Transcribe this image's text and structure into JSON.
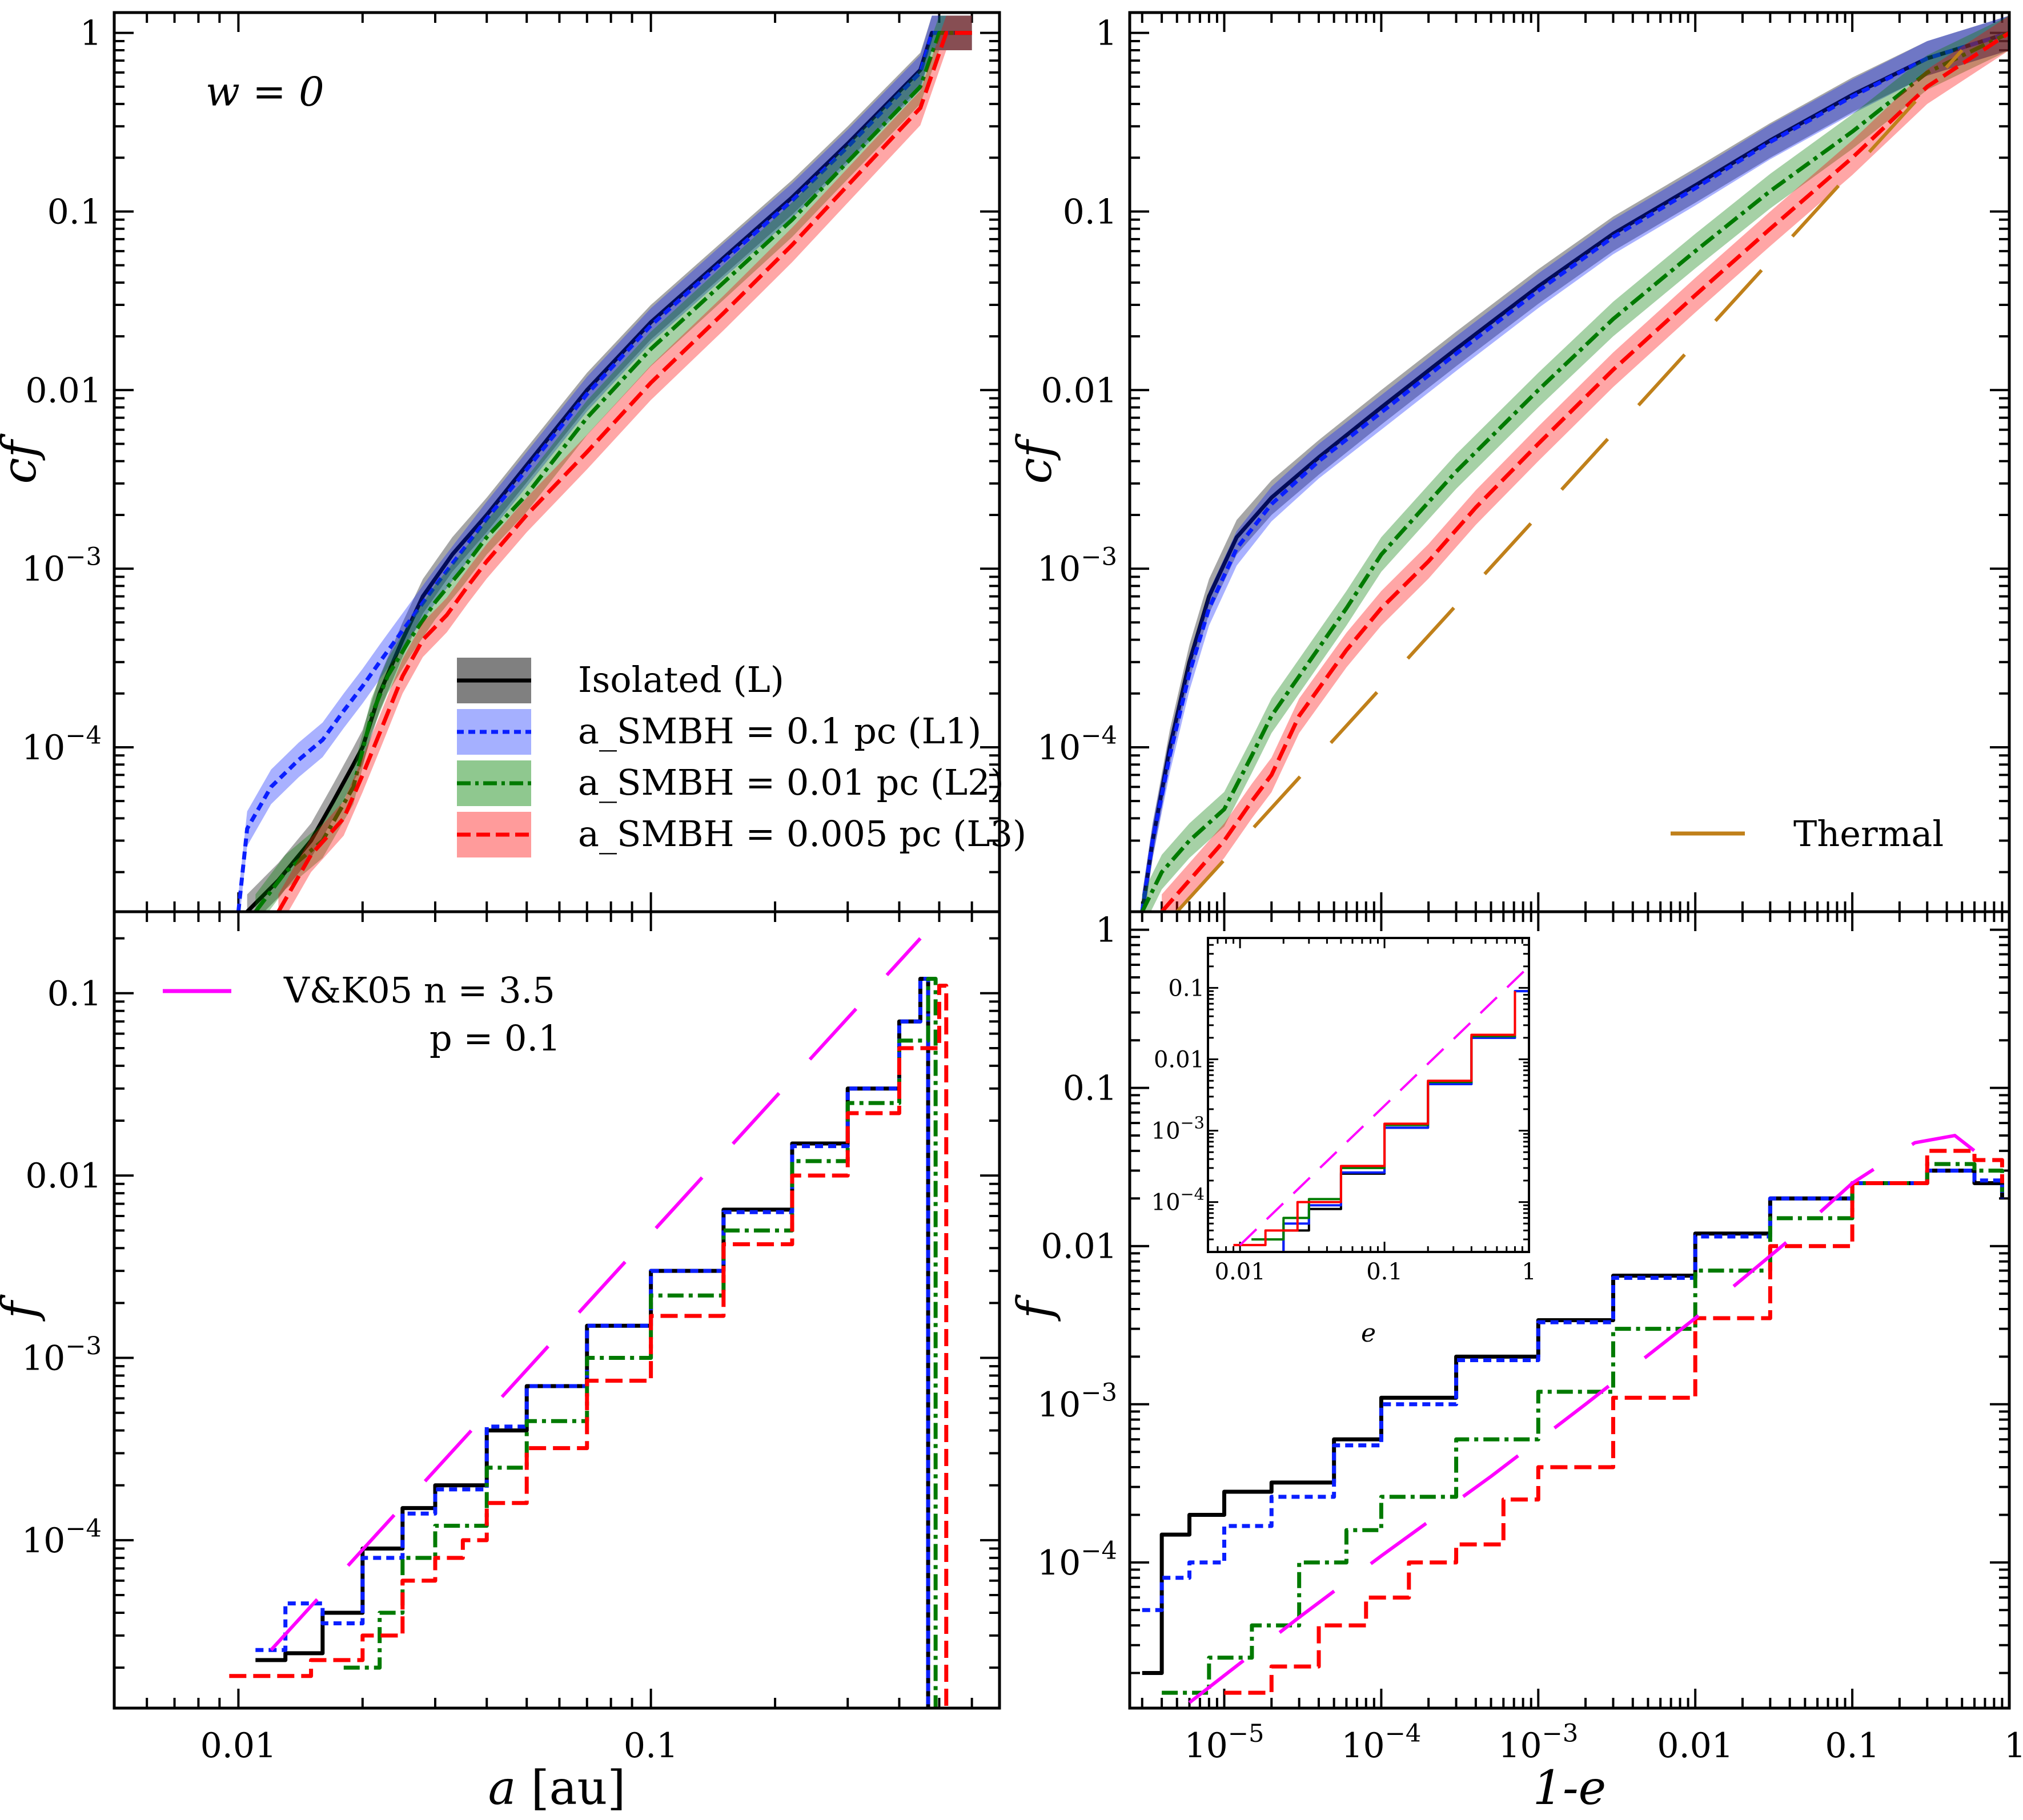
{
  "figure": {
    "annotation": "w = 0",
    "panels": [
      "top-left",
      "top-right",
      "bottom-left",
      "bottom-right",
      "inset"
    ]
  },
  "colors": {
    "isolated": "#000000",
    "l1": "#0a1fff",
    "l2": "#007a00",
    "l3": "#ff0000",
    "thermal": "#c0801a",
    "vk05": "#ff00ff"
  },
  "legend_top_left": [
    {
      "label": "Isolated  (L)",
      "series": "isolated"
    },
    {
      "label": "a_SMBH = 0.1 pc  (L1)",
      "series": "l1"
    },
    {
      "label": "a_SMBH = 0.01 pc  (L2)",
      "series": "l2"
    },
    {
      "label": "a_SMBH = 0.005 pc  (L3)",
      "series": "l3"
    }
  ],
  "legend_top_right": {
    "label": "Thermal"
  },
  "legend_bottom_left": {
    "label1": "V&K05 n = 3.5",
    "label2": "p = 0.1"
  },
  "chart_data": [
    {
      "id": "top-left",
      "type": "line",
      "title": "",
      "xlabel": "a [au]",
      "ylabel": "cf",
      "xscale": "log",
      "yscale": "log",
      "xlim": [
        0.005,
        0.7
      ],
      "ylim": [
        1.2e-05,
        1.3
      ],
      "xticks": [
        0.01,
        0.1
      ],
      "xtick_labels": [
        "0.01",
        "0.1"
      ],
      "yticks": [
        0.0001,
        0.001,
        0.01,
        0.1,
        1
      ],
      "ytick_labels": [
        "10^-4",
        "10^-3",
        "0.01",
        "0.1",
        "1"
      ],
      "series": [
        {
          "name": "Isolated (L)",
          "key": "isolated",
          "style": "solid",
          "x": [
            0.0105,
            0.0125,
            0.015,
            0.017,
            0.019,
            0.02,
            0.022,
            0.025,
            0.028,
            0.033,
            0.04,
            0.05,
            0.07,
            0.1,
            0.15,
            0.22,
            0.3,
            0.45,
            0.48,
            0.6
          ],
          "y": [
            1.2e-05,
            1.8e-05,
            3e-05,
            5e-05,
            8e-05,
            0.0001,
            0.0002,
            0.0004,
            0.0007,
            0.0012,
            0.002,
            0.0038,
            0.01,
            0.024,
            0.055,
            0.12,
            0.24,
            0.62,
            1.0,
            1.0
          ]
        },
        {
          "name": "a_SMBH = 0.1 pc (L1)",
          "key": "l1",
          "style": "dotted",
          "x": [
            0.01,
            0.0105,
            0.012,
            0.014,
            0.016,
            0.018,
            0.02,
            0.022,
            0.025,
            0.03,
            0.04,
            0.05,
            0.07,
            0.1,
            0.15,
            0.22,
            0.3,
            0.45,
            0.48,
            0.6
          ],
          "y": [
            1.2e-05,
            3.5e-05,
            6e-05,
            8.5e-05,
            0.00011,
            0.00016,
            0.00022,
            0.0003,
            0.00045,
            0.0008,
            0.0019,
            0.0036,
            0.0095,
            0.023,
            0.053,
            0.115,
            0.23,
            0.6,
            1.0,
            1.0
          ]
        },
        {
          "name": "a_SMBH = 0.01 pc (L2)",
          "key": "l2",
          "style": "dashdot",
          "x": [
            0.011,
            0.013,
            0.016,
            0.019,
            0.021,
            0.023,
            0.026,
            0.03,
            0.035,
            0.04,
            0.05,
            0.07,
            0.1,
            0.15,
            0.22,
            0.3,
            0.45,
            0.5,
            0.6
          ],
          "y": [
            1.2e-05,
            2e-05,
            3e-05,
            6e-05,
            0.00015,
            0.00025,
            0.0004,
            0.00065,
            0.001,
            0.0015,
            0.0026,
            0.007,
            0.017,
            0.04,
            0.09,
            0.19,
            0.5,
            1.0,
            1.0
          ]
        },
        {
          "name": "a_SMBH = 0.005 pc (L3)",
          "key": "l3",
          "style": "dashed",
          "x": [
            0.0125,
            0.015,
            0.018,
            0.02,
            0.022,
            0.025,
            0.028,
            0.032,
            0.036,
            0.04,
            0.05,
            0.07,
            0.1,
            0.15,
            0.22,
            0.3,
            0.45,
            0.52,
            0.6
          ],
          "y": [
            1.2e-05,
            2.5e-05,
            4e-05,
            7e-05,
            0.00012,
            0.00025,
            0.0004,
            0.00055,
            0.0008,
            0.0011,
            0.002,
            0.0045,
            0.011,
            0.027,
            0.065,
            0.14,
            0.38,
            1.0,
            1.0
          ]
        }
      ]
    },
    {
      "id": "top-right",
      "type": "line",
      "xlabel": "",
      "ylabel": "cf",
      "xscale": "log",
      "yscale": "log",
      "xlim": [
        2.5e-06,
        1.0
      ],
      "ylim": [
        1.2e-05,
        1.3
      ],
      "yticks": [
        0.0001,
        0.001,
        0.01,
        0.1,
        1
      ],
      "ytick_labels": [
        "10^-4",
        "10^-3",
        "0.01",
        "0.1",
        "1"
      ],
      "series": [
        {
          "name": "Isolated",
          "key": "isolated",
          "style": "solid",
          "x": [
            3e-06,
            3.5e-06,
            4.5e-06,
            6e-06,
            8e-06,
            1.2e-05,
            2e-05,
            4e-05,
            0.0001,
            0.0003,
            0.001,
            0.003,
            0.01,
            0.03,
            0.1,
            0.3,
            1.0
          ],
          "y": [
            1.2e-05,
            3e-05,
            0.0001,
            0.0003,
            0.0007,
            0.0015,
            0.0025,
            0.0042,
            0.008,
            0.017,
            0.038,
            0.075,
            0.14,
            0.25,
            0.45,
            0.72,
            1.0
          ]
        },
        {
          "name": "L1",
          "key": "l1",
          "style": "dotted",
          "x": [
            3e-06,
            3.5e-06,
            4.5e-06,
            6e-06,
            8e-06,
            1.2e-05,
            2e-05,
            4e-05,
            0.0001,
            0.0003,
            0.001,
            0.003,
            0.01,
            0.03,
            0.1,
            0.3,
            1.0
          ],
          "y": [
            1.2e-05,
            3e-05,
            9e-05,
            0.00026,
            0.0006,
            0.0013,
            0.0023,
            0.004,
            0.0075,
            0.016,
            0.036,
            0.072,
            0.135,
            0.245,
            0.44,
            0.72,
            1.0
          ]
        },
        {
          "name": "L2",
          "key": "l2",
          "style": "dashdot",
          "x": [
            3e-06,
            4e-06,
            6e-06,
            1e-05,
            1.5e-05,
            2e-05,
            3e-05,
            6e-05,
            0.0001,
            0.0003,
            0.001,
            0.003,
            0.01,
            0.03,
            0.1,
            0.3,
            1.0
          ],
          "y": [
            1.2e-05,
            2e-05,
            3e-05,
            4.5e-05,
            9e-05,
            0.00015,
            0.00025,
            0.0006,
            0.0012,
            0.0035,
            0.01,
            0.025,
            0.06,
            0.13,
            0.28,
            0.6,
            1.0
          ]
        },
        {
          "name": "L3",
          "key": "l3",
          "style": "dashed",
          "x": [
            4e-06,
            6e-06,
            1e-05,
            1.5e-05,
            2e-05,
            3e-05,
            6e-05,
            0.0001,
            0.0002,
            0.0004,
            0.001,
            0.003,
            0.01,
            0.03,
            0.1,
            0.3,
            1.0
          ],
          "y": [
            1.2e-05,
            1.8e-05,
            3e-05,
            5e-05,
            7e-05,
            0.00015,
            0.00035,
            0.0006,
            0.0011,
            0.0022,
            0.005,
            0.013,
            0.034,
            0.08,
            0.2,
            0.5,
            1.0
          ]
        },
        {
          "name": "Thermal",
          "key": "thermal",
          "style": "longdash",
          "x": [
            5e-06,
            0.5
          ],
          "y": [
            1.2e-05,
            0.8
          ]
        }
      ]
    },
    {
      "id": "bottom-left",
      "type": "line",
      "xlabel": "a [au]",
      "ylabel": "f",
      "xscale": "log",
      "yscale": "log",
      "xlim": [
        0.005,
        0.7
      ],
      "ylim": [
        1.2e-05,
        0.28
      ],
      "xticks": [
        0.01,
        0.1
      ],
      "xtick_labels": [
        "0.01",
        "0.1"
      ],
      "yticks": [
        0.0001,
        0.001,
        0.01,
        0.1
      ],
      "ytick_labels": [
        "10^-4",
        "10^-3",
        "0.01",
        "0.1"
      ],
      "series": [
        {
          "name": "Isolated",
          "key": "isolated",
          "style": "solid",
          "x": [
            0.011,
            0.013,
            0.016,
            0.02,
            0.025,
            0.03,
            0.04,
            0.05,
            0.07,
            0.1,
            0.15,
            0.22,
            0.3,
            0.4,
            0.45,
            0.47
          ],
          "y": [
            2.2e-05,
            2.4e-05,
            4e-05,
            9e-05,
            0.00015,
            0.0002,
            0.0004,
            0.0007,
            0.0015,
            0.003,
            0.0065,
            0.015,
            0.03,
            0.07,
            0.12,
            1.2e-05
          ]
        },
        {
          "name": "L1",
          "key": "l1",
          "style": "dotted",
          "x": [
            0.011,
            0.013,
            0.016,
            0.02,
            0.025,
            0.03,
            0.04,
            0.05,
            0.07,
            0.1,
            0.15,
            0.22,
            0.3,
            0.4,
            0.45,
            0.47
          ],
          "y": [
            2.5e-05,
            4.5e-05,
            3.5e-05,
            8e-05,
            0.00014,
            0.00019,
            0.00042,
            0.0007,
            0.0015,
            0.003,
            0.0063,
            0.0145,
            0.03,
            0.07,
            0.12,
            1.2e-05
          ]
        },
        {
          "name": "L2",
          "key": "l2",
          "style": "dashdot",
          "x": [
            0.018,
            0.022,
            0.025,
            0.03,
            0.04,
            0.05,
            0.07,
            0.1,
            0.15,
            0.22,
            0.3,
            0.4,
            0.47,
            0.49
          ],
          "y": [
            2e-05,
            4e-05,
            8e-05,
            0.00012,
            0.00025,
            0.00045,
            0.001,
            0.0022,
            0.005,
            0.012,
            0.025,
            0.055,
            0.12,
            1.2e-05
          ]
        },
        {
          "name": "L3",
          "key": "l3",
          "style": "dashed",
          "x": [
            0.0095,
            0.015,
            0.02,
            0.025,
            0.03,
            0.035,
            0.04,
            0.05,
            0.07,
            0.1,
            0.15,
            0.22,
            0.3,
            0.4,
            0.5,
            0.52
          ],
          "y": [
            1.8e-05,
            2.2e-05,
            3e-05,
            6e-05,
            8e-05,
            0.0001,
            0.00016,
            0.00032,
            0.00075,
            0.0017,
            0.0042,
            0.01,
            0.022,
            0.05,
            0.11,
            1.2e-05
          ]
        },
        {
          "name": "V&K05 n = 3.5, p = 0.1",
          "key": "vk05",
          "style": "longdash",
          "x": [
            0.012,
            0.45
          ],
          "y": [
            2.5e-05,
            0.2
          ]
        }
      ]
    },
    {
      "id": "bottom-right",
      "type": "line",
      "xlabel": "1-e",
      "ylabel": "f",
      "xscale": "log",
      "yscale": "log",
      "xlim": [
        2.5e-06,
        1.0
      ],
      "ylim": [
        1.2e-05,
        1.3
      ],
      "xticks": [
        1e-05,
        0.0001,
        0.001,
        0.01,
        0.1,
        1
      ],
      "xtick_labels": [
        "10^-5",
        "10^-4",
        "10^-3",
        "0.01",
        "0.1",
        "1"
      ],
      "yticks": [
        0.0001,
        0.001,
        0.01,
        0.1,
        1
      ],
      "ytick_labels": [
        "10^-4",
        "10^-3",
        "0.01",
        "0.1",
        "1"
      ],
      "series": [
        {
          "name": "Isolated",
          "key": "isolated",
          "style": "solid",
          "x": [
            3e-06,
            4e-06,
            6e-06,
            1e-05,
            2e-05,
            5e-05,
            0.0001,
            0.0003,
            0.001,
            0.003,
            0.01,
            0.03,
            0.1,
            0.3,
            0.6,
            0.9
          ],
          "y": [
            2e-05,
            0.00015,
            0.0002,
            0.00028,
            0.00032,
            0.0006,
            0.0011,
            0.002,
            0.0034,
            0.0065,
            0.012,
            0.02,
            0.025,
            0.03,
            0.025,
            0.02
          ]
        },
        {
          "name": "L1",
          "key": "l1",
          "style": "dotted",
          "x": [
            3e-06,
            4e-06,
            6e-06,
            1e-05,
            2e-05,
            5e-05,
            0.0001,
            0.0003,
            0.001,
            0.003,
            0.01,
            0.03,
            0.1,
            0.3,
            0.6,
            0.9
          ],
          "y": [
            5e-05,
            8e-05,
            0.0001,
            0.00017,
            0.00026,
            0.00055,
            0.001,
            0.0019,
            0.0033,
            0.0063,
            0.0115,
            0.02,
            0.025,
            0.03,
            0.026,
            0.02
          ]
        },
        {
          "name": "L2",
          "key": "l2",
          "style": "dashdot",
          "x": [
            4e-06,
            8e-06,
            1.5e-05,
            3e-05,
            6e-05,
            0.0001,
            0.0003,
            0.001,
            0.003,
            0.01,
            0.03,
            0.1,
            0.3,
            0.6,
            0.9
          ],
          "y": [
            1.5e-05,
            2.5e-05,
            4e-05,
            0.0001,
            0.00016,
            0.00026,
            0.0006,
            0.0012,
            0.003,
            0.007,
            0.015,
            0.025,
            0.033,
            0.03,
            0.022
          ]
        },
        {
          "name": "L3",
          "key": "l3",
          "style": "dashed",
          "x": [
            1e-05,
            2e-05,
            4e-05,
            8e-05,
            0.00015,
            0.0003,
            0.0006,
            0.001,
            0.003,
            0.01,
            0.03,
            0.1,
            0.3,
            0.6,
            0.9
          ],
          "y": [
            1.5e-05,
            2.2e-05,
            4e-05,
            6e-05,
            0.0001,
            0.00013,
            0.00025,
            0.0004,
            0.0011,
            0.0035,
            0.01,
            0.025,
            0.04,
            0.035,
            0.025
          ]
        },
        {
          "name": "V&K05",
          "key": "vk05",
          "style": "longdash",
          "x": [
            6e-06,
            3e-05,
            0.0001,
            0.0005,
            0.002,
            0.01,
            0.04,
            0.1,
            0.25,
            0.45,
            0.6
          ],
          "y": [
            1.3e-05,
            4.5e-05,
            0.00011,
            0.00035,
            0.001,
            0.0035,
            0.011,
            0.025,
            0.045,
            0.05,
            0.04
          ]
        }
      ]
    },
    {
      "id": "inset",
      "type": "line",
      "xlabel": "e",
      "ylabel": "",
      "xscale": "log",
      "yscale": "log",
      "xlim": [
        0.006,
        1.0
      ],
      "ylim": [
        2e-05,
        0.5
      ],
      "xticks": [
        0.01,
        0.1,
        1
      ],
      "xtick_labels": [
        "0.01",
        "0.1",
        "1"
      ],
      "yticks": [
        0.0001,
        0.001,
        0.01,
        0.1
      ],
      "ytick_labels": [
        "10^-4",
        "10^-3",
        "0.01",
        "0.1"
      ],
      "series": [
        {
          "name": "Isolated",
          "key": "isolated",
          "style": "solid",
          "x": [
            0.012,
            0.02,
            0.03,
            0.05,
            0.1,
            0.2,
            0.4,
            0.8,
            1.0
          ],
          "y": [
            2e-05,
            4e-05,
            8e-05,
            0.00025,
            0.0011,
            0.0045,
            0.02,
            0.09,
            0.2
          ]
        },
        {
          "name": "L1",
          "key": "l1",
          "style": "solid",
          "x": [
            0.014,
            0.02,
            0.03,
            0.05,
            0.1,
            0.2,
            0.4,
            0.8,
            1.0
          ],
          "y": [
            2e-05,
            5e-05,
            9e-05,
            0.00026,
            0.0011,
            0.0045,
            0.02,
            0.09,
            0.22
          ]
        },
        {
          "name": "L2",
          "key": "l2",
          "style": "solid",
          "x": [
            0.012,
            0.02,
            0.03,
            0.05,
            0.1,
            0.2,
            0.4,
            0.8
          ],
          "y": [
            3e-05,
            6e-05,
            0.00011,
            0.0003,
            0.0012,
            0.0048,
            0.021,
            0.085
          ]
        },
        {
          "name": "L3",
          "key": "l3",
          "style": "solid",
          "x": [
            0.009,
            0.015,
            0.025,
            0.05,
            0.1,
            0.2,
            0.4,
            0.8
          ],
          "y": [
            2.5e-05,
            4e-05,
            0.0001,
            0.00032,
            0.00125,
            0.005,
            0.022,
            0.09
          ]
        },
        {
          "name": "V&K05",
          "key": "vk05",
          "style": "longdash",
          "x": [
            0.01,
            1.0
          ],
          "y": [
            2.5e-05,
            0.2
          ]
        }
      ]
    }
  ]
}
